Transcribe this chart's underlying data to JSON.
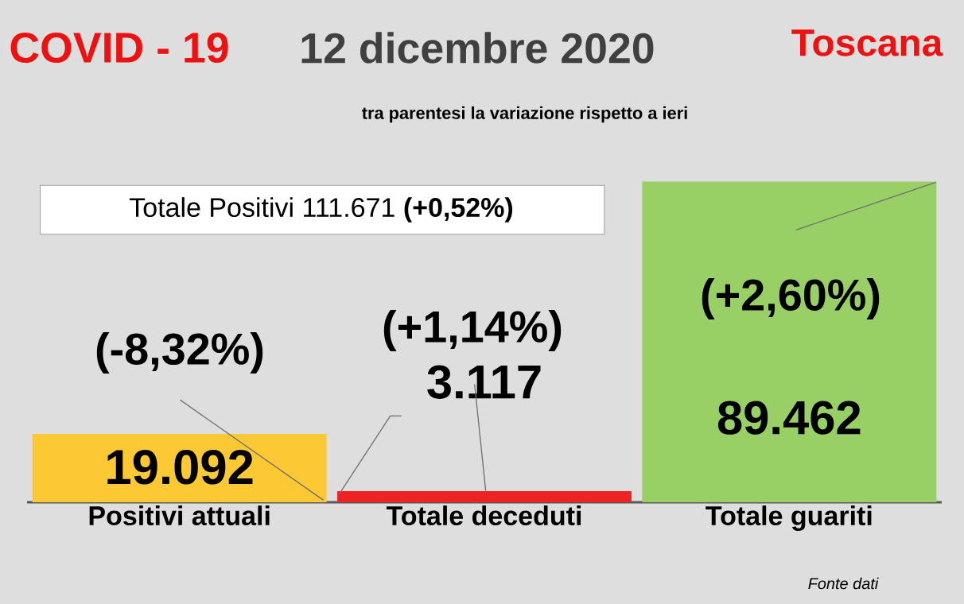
{
  "chart_data": {
    "type": "bar",
    "title": "COVID - 19",
    "subtitle": "tra parentesi la variazione rispetto a ieri",
    "categories": [
      "Positivi attuali",
      "Totale deceduti",
      "Totale guariti"
    ],
    "values": [
      19092,
      3117,
      89462
    ],
    "colors": [
      "#fcc934",
      "#ee2222",
      "#99d066"
    ],
    "value_labels": [
      "19.092",
      "3.117",
      "89.462"
    ],
    "annotations": [
      "12 dicembre 2020",
      "Toscana",
      "Totale Positivi 111.671 **(+0,52%)**",
      "(-8,32%)",
      "(+1,14%)",
      "(+2,60%)",
      "Fonte dati"
    ]
  }
}
